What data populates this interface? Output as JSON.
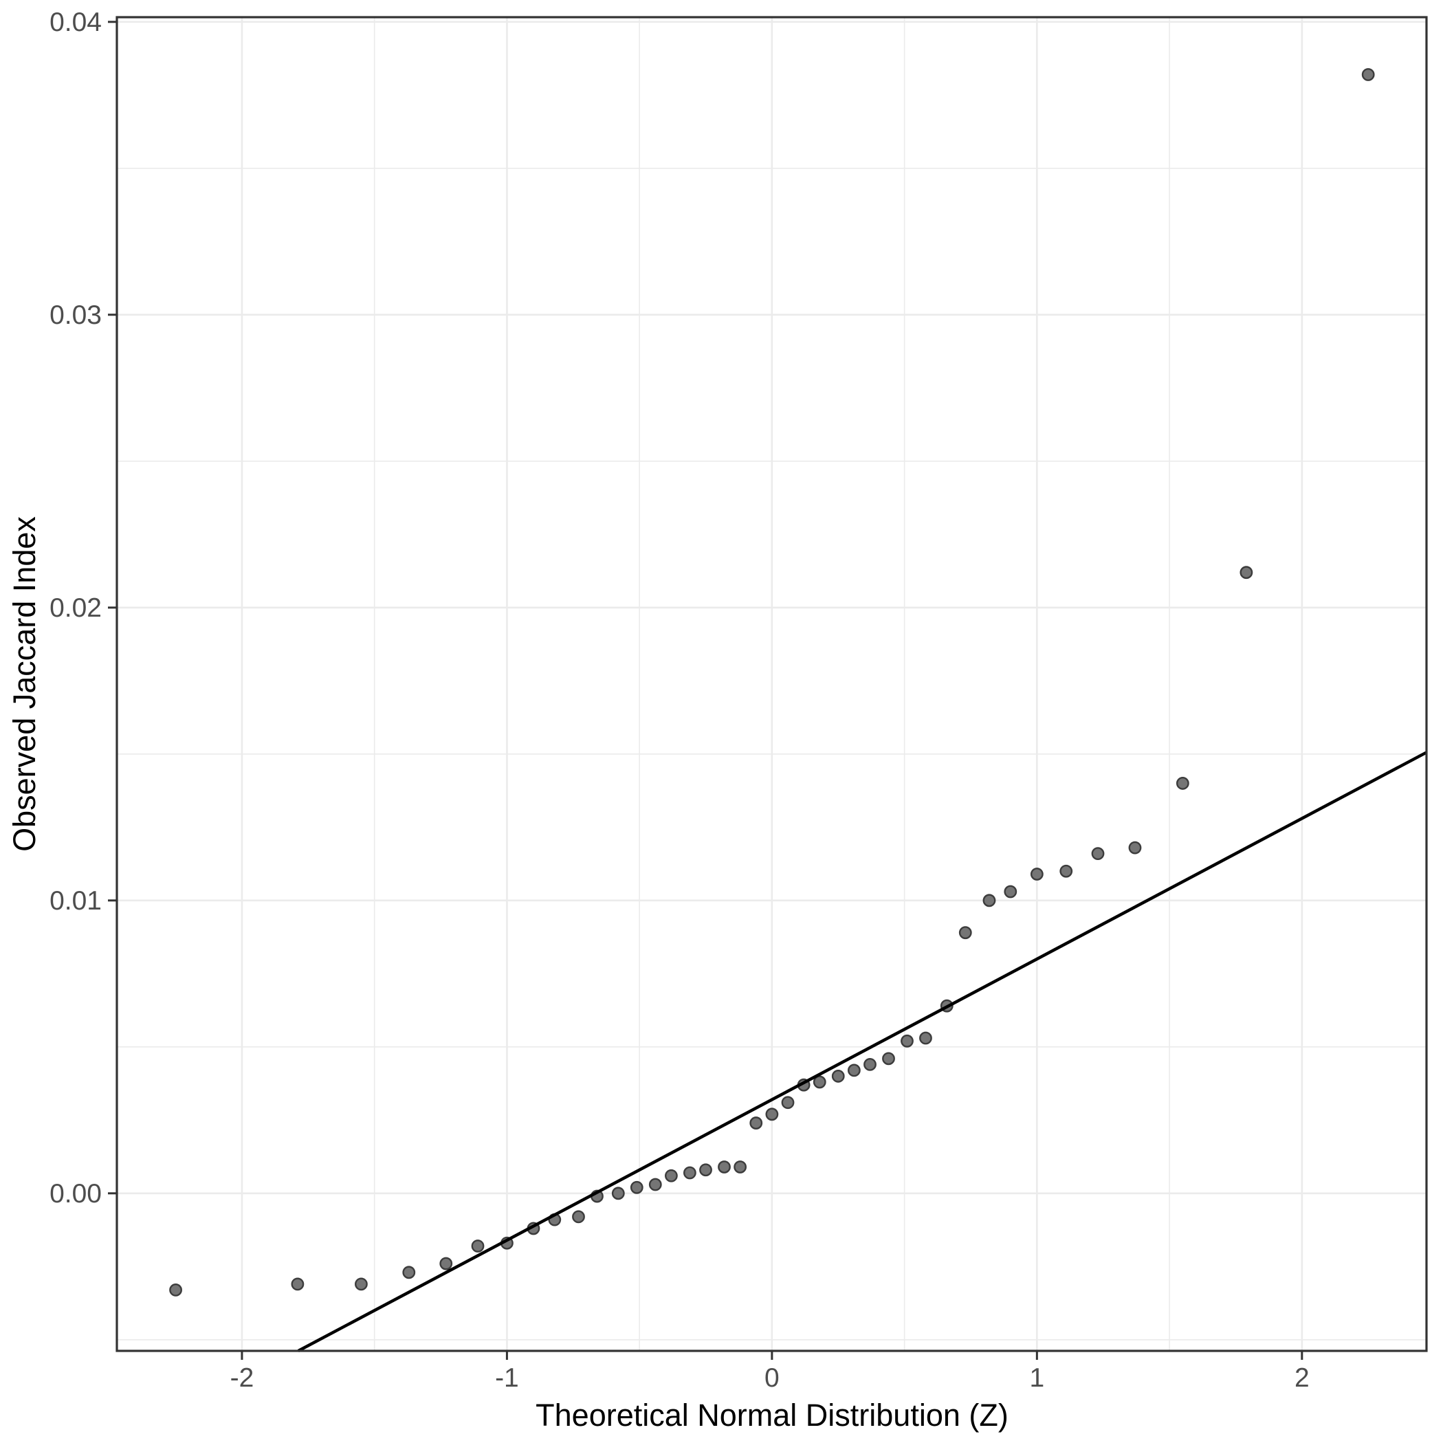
{
  "chart_data": {
    "type": "scatter",
    "title": "",
    "xlabel": "Theoretical Normal Distribution (Z)",
    "ylabel": "Observed Jaccard Index",
    "xlim": [
      -2.472,
      2.47
    ],
    "ylim": [
      -0.00538,
      0.04016
    ],
    "grid": true,
    "legend_position": "none",
    "x_ticks": {
      "values": [
        -2,
        -1,
        0,
        1,
        2
      ],
      "labels": [
        "-2",
        "-1",
        "0",
        "1",
        "2"
      ]
    },
    "y_ticks": {
      "values": [
        0.0,
        0.01,
        0.02,
        0.03,
        0.04
      ],
      "labels": [
        "0.00",
        "0.01",
        "0.02",
        "0.03",
        "0.04"
      ]
    },
    "x_minor": [
      -1.5,
      -0.5,
      0.5,
      1.5
    ],
    "y_minor": [
      -0.005,
      0.005,
      0.015,
      0.025,
      0.035
    ],
    "reference_line": {
      "intercept": 0.0032,
      "slope": 0.0048
    },
    "points": [
      {
        "z": -2.25,
        "jaccard": -0.0033
      },
      {
        "z": -1.79,
        "jaccard": -0.0031
      },
      {
        "z": -1.55,
        "jaccard": -0.0031
      },
      {
        "z": -1.37,
        "jaccard": -0.0027
      },
      {
        "z": -1.23,
        "jaccard": -0.0024
      },
      {
        "z": -1.11,
        "jaccard": -0.0018
      },
      {
        "z": -1.0,
        "jaccard": -0.0017
      },
      {
        "z": -0.9,
        "jaccard": -0.0012
      },
      {
        "z": -0.82,
        "jaccard": -0.0009
      },
      {
        "z": -0.73,
        "jaccard": -0.0008
      },
      {
        "z": -0.66,
        "jaccard": -0.0001
      },
      {
        "z": -0.58,
        "jaccard": 0.0
      },
      {
        "z": -0.51,
        "jaccard": 0.0002
      },
      {
        "z": -0.44,
        "jaccard": 0.0003
      },
      {
        "z": -0.38,
        "jaccard": 0.0006
      },
      {
        "z": -0.31,
        "jaccard": 0.0007
      },
      {
        "z": -0.25,
        "jaccard": 0.0008
      },
      {
        "z": -0.18,
        "jaccard": 0.0009
      },
      {
        "z": -0.12,
        "jaccard": 0.0009
      },
      {
        "z": -0.06,
        "jaccard": 0.0024
      },
      {
        "z": 0.0,
        "jaccard": 0.0027
      },
      {
        "z": 0.06,
        "jaccard": 0.0031
      },
      {
        "z": 0.12,
        "jaccard": 0.0037
      },
      {
        "z": 0.18,
        "jaccard": 0.0038
      },
      {
        "z": 0.25,
        "jaccard": 0.004
      },
      {
        "z": 0.31,
        "jaccard": 0.0042
      },
      {
        "z": 0.37,
        "jaccard": 0.0044
      },
      {
        "z": 0.44,
        "jaccard": 0.0046
      },
      {
        "z": 0.51,
        "jaccard": 0.0052
      },
      {
        "z": 0.58,
        "jaccard": 0.0053
      },
      {
        "z": 0.66,
        "jaccard": 0.0064
      },
      {
        "z": 0.73,
        "jaccard": 0.0089
      },
      {
        "z": 0.82,
        "jaccard": 0.01
      },
      {
        "z": 0.9,
        "jaccard": 0.0103
      },
      {
        "z": 1.0,
        "jaccard": 0.0109
      },
      {
        "z": 1.11,
        "jaccard": 0.011
      },
      {
        "z": 1.23,
        "jaccard": 0.0116
      },
      {
        "z": 1.37,
        "jaccard": 0.0118
      },
      {
        "z": 1.55,
        "jaccard": 0.014
      },
      {
        "z": 1.79,
        "jaccard": 0.0212
      },
      {
        "z": 2.25,
        "jaccard": 0.0382
      }
    ]
  },
  "style": {
    "background": "#FFFFFF",
    "panel_background": "#FFFFFF",
    "grid_color": "#EBEBEB",
    "panel_border_color": "#333333",
    "tick_color": "#333333",
    "tick_label_color": "#4D4D4D",
    "axis_title_color": "#000000",
    "point_fill": "#757575",
    "point_stroke": "#3C3C3C",
    "reference_line_color": "#000000"
  }
}
